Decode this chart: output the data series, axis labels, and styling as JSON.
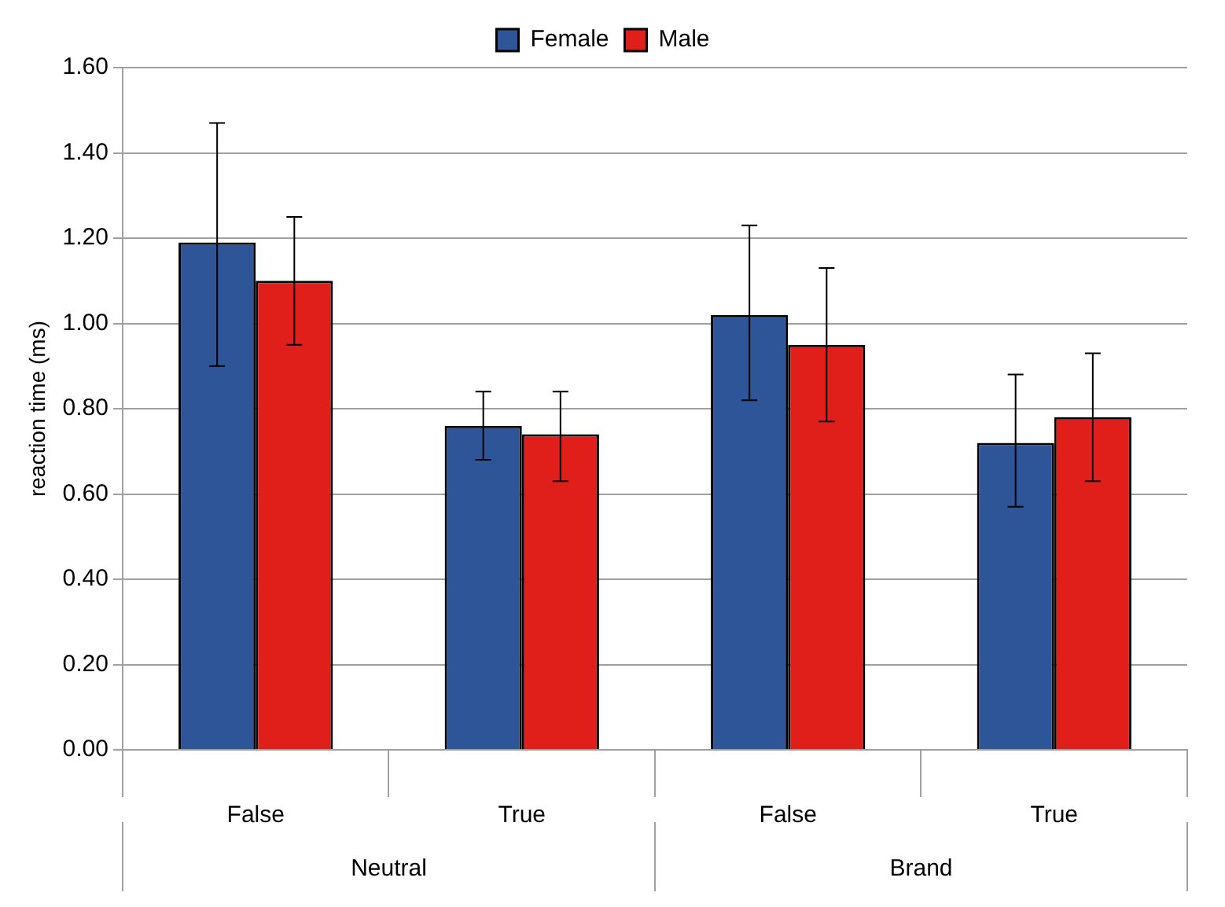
{
  "chart_data": {
    "type": "bar",
    "ylabel": "reaction time (ms)",
    "categories": [
      "False",
      "True",
      "False",
      "True"
    ],
    "annotations": [
      "Neutral",
      "Brand"
    ],
    "series": [
      {
        "name": "Female",
        "color": "#2e5597",
        "values": [
          1.19,
          0.76,
          1.02,
          0.72
        ],
        "errors": [
          [
            0.9,
            1.47
          ],
          [
            0.68,
            0.84
          ],
          [
            0.82,
            1.23
          ],
          [
            0.57,
            0.88
          ]
        ]
      },
      {
        "name": "Male",
        "color": "#e01e1a",
        "values": [
          1.1,
          0.74,
          0.95,
          0.78
        ],
        "errors": [
          [
            0.95,
            1.25
          ],
          [
            0.63,
            0.84
          ],
          [
            0.77,
            1.13
          ],
          [
            0.63,
            0.93
          ]
        ]
      }
    ],
    "ylim": [
      0,
      1.6
    ],
    "yticks": [
      {
        "value": 0,
        "label": "0.00"
      },
      {
        "value": 0.2,
        "label": "0.20"
      },
      {
        "value": 0.4,
        "label": "0.40"
      },
      {
        "value": 0.6,
        "label": "0.60"
      },
      {
        "value": 0.8,
        "label": "0.80"
      },
      {
        "value": 1.0,
        "label": "1.00"
      },
      {
        "value": 1.2,
        "label": "1.20"
      },
      {
        "value": 1.4,
        "label": "1.40"
      },
      {
        "value": 1.6,
        "label": "1.60"
      }
    ],
    "grid": "y",
    "legend": "top"
  }
}
